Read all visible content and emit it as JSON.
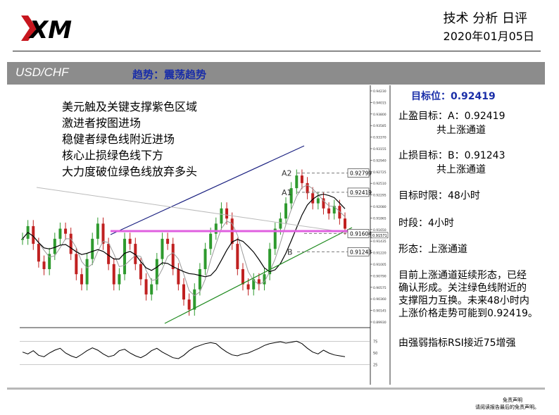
{
  "header": {
    "logo_text": "XM",
    "title_line1": "技术 分析 日评",
    "title_line2": "2020年01月05日"
  },
  "band": {
    "pair": "USD/CHF",
    "trend": "趋势：震荡趋势"
  },
  "strategy_lines": [
    "美元触及关键支撑紫色区域",
    "激进者按图进场",
    "稳健者绿色线附近进场",
    "核心止损绿色线下方",
    "大力度破位绿色线放弃多头"
  ],
  "right_panel": {
    "target_head": "目标位：0.92419",
    "tp_label": "止盈目标：A：0.92419",
    "tp_sub": "共上涨通道",
    "sl_label": "止损目标：B：0.91243",
    "sl_sub": "共上涨通道",
    "time_limit": "目标时限：48小时",
    "period": "时段：4小时",
    "pattern": "形态：上涨通道",
    "analysis": [
      "目前上涨通道延续形态，已经",
      "确认形成。关注绿色线附近的",
      "支撑阻力互换。未来48小时内",
      "上涨价格走势可能到0.92419。"
    ],
    "rsi_note": "由强弱指标RSI接近75增强"
  },
  "chart_data": {
    "type": "line",
    "series": [
      {
        "values": [
          0.915,
          0.9175,
          0.914,
          0.9105,
          0.909,
          0.912,
          0.915,
          0.917,
          0.916,
          0.912,
          0.908,
          0.906,
          0.911,
          0.915,
          0.918,
          0.914,
          0.91,
          0.906,
          0.908,
          0.915,
          0.914,
          0.91,
          0.907,
          0.904,
          0.906,
          0.911,
          0.915,
          0.914,
          0.909,
          0.906,
          0.903,
          0.901,
          0.905,
          0.909,
          0.913,
          0.916,
          0.918,
          0.921,
          0.919,
          0.914,
          0.909,
          0.906,
          0.905,
          0.907,
          0.906,
          0.908,
          0.913,
          0.917,
          0.919,
          0.922,
          0.925,
          0.9275,
          0.926,
          0.924,
          0.922,
          0.923,
          0.921,
          0.92,
          0.9215,
          0.919,
          0.917
        ]
      }
    ],
    "levels": [
      {
        "label": "0.92799",
        "value": 0.92799,
        "style": "dashed"
      },
      {
        "label": "0.92419",
        "value": 0.92419,
        "style": "dashed"
      },
      {
        "label": "0.91604",
        "value": 0.91604,
        "style": "dashed"
      },
      {
        "label": "0.91243",
        "value": 0.91243,
        "style": "dashed"
      }
    ],
    "point_labels": [
      "A2",
      "A1",
      "B"
    ],
    "ylim": [
      0.898,
      0.9445
    ],
    "y_ticks": [
      "0.94230",
      "0.94015",
      "0.93800",
      "0.93585",
      "0.93370",
      "0.93155",
      "0.92940",
      "0.92725",
      "0.92510",
      "0.92295",
      "0.92080",
      "0.91865",
      "0.91650",
      "0.91435",
      "0.91220",
      "0.91005",
      "0.90790",
      "0.90575",
      "0.90360",
      "0.90145",
      "0.89930"
    ],
    "current_price": "0.91571",
    "rsi": {
      "ticks": [
        "75",
        "50",
        "25"
      ],
      "ylim": [
        20,
        80
      ],
      "values": [
        52,
        48,
        55,
        45,
        42,
        50,
        56,
        60,
        50,
        44,
        40,
        47,
        55,
        61,
        56,
        48,
        42,
        45,
        55,
        58,
        50,
        44,
        40,
        46,
        55,
        60,
        52,
        46,
        40,
        38,
        45,
        55,
        62,
        66,
        70,
        72,
        70,
        60,
        52,
        46,
        44,
        48,
        50,
        55,
        60,
        66,
        70,
        72,
        74,
        71,
        73,
        75,
        70,
        60,
        52,
        48,
        56,
        50,
        46,
        44,
        42
      ]
    }
  },
  "footer": {
    "disclaimer_title": "免责声明",
    "disclaimer_text": "请阅读报告最后的免责声明。"
  }
}
